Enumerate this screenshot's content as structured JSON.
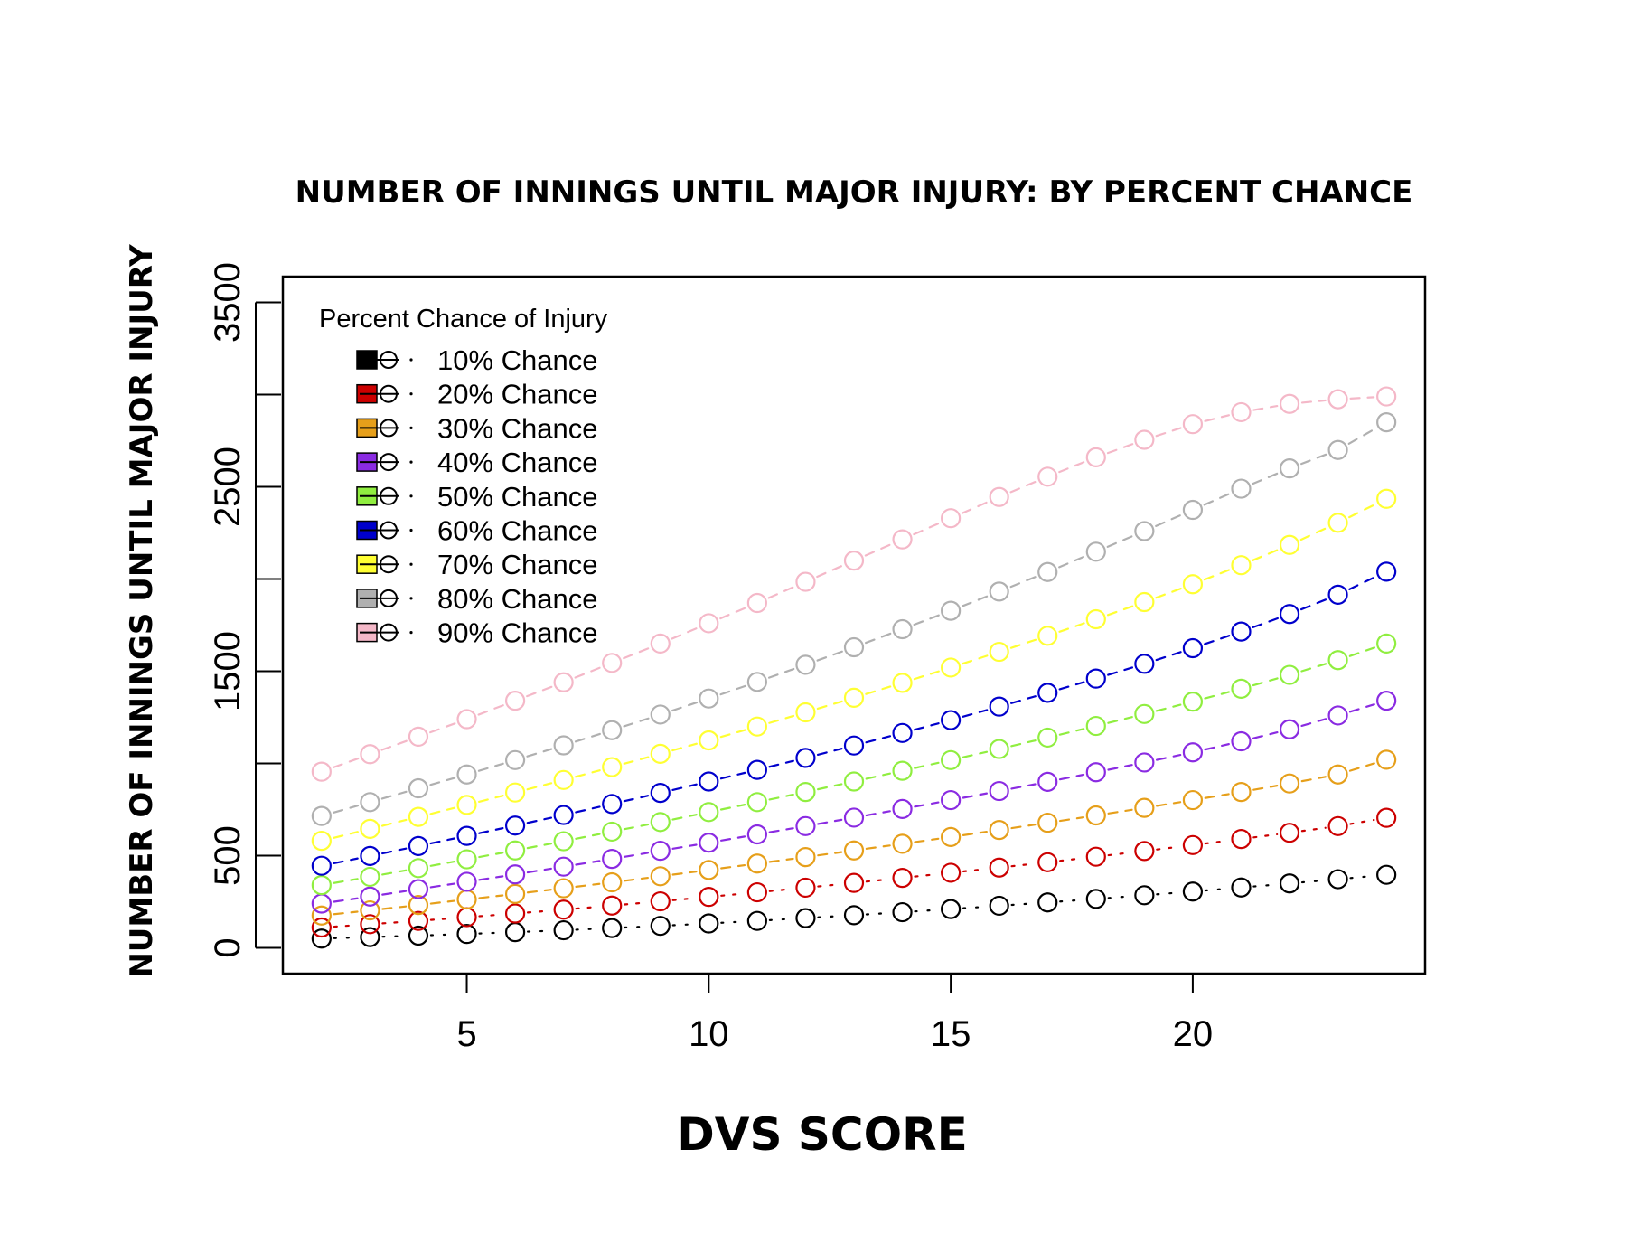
{
  "chart_data": {
    "type": "scatter",
    "title": "NUMBER OF INNINGS UNTIL MAJOR INJURY: BY PERCENT CHANCE",
    "xlabel": "DVS SCORE",
    "ylabel": "NUMBER OF INNINGS UNTIL MAJOR INJURY",
    "xlim": [
      1.2,
      24.8
    ],
    "ylim": [
      -140,
      3640
    ],
    "x_ticks": [
      5,
      10,
      15,
      20
    ],
    "y_ticks": [
      0,
      500,
      1000,
      1500,
      2000,
      2500,
      3000,
      3500
    ],
    "y_tick_labels": [
      "0",
      "500",
      "",
      "1500",
      "",
      "2500",
      "",
      "3500"
    ],
    "grid": false,
    "legend_position": "top-left",
    "legend_title": "Percent Chance of Injury",
    "x": [
      2,
      3,
      4,
      5,
      6,
      7,
      8,
      9,
      10,
      11,
      12,
      13,
      14,
      15,
      16,
      17,
      18,
      19,
      20,
      21,
      22,
      23,
      24
    ],
    "series": [
      {
        "name": "10% Chance",
        "color": "#000000",
        "values": [
          50,
          58,
          66,
          75,
          85,
          95,
          107,
          119,
          132,
          146,
          161,
          177,
          193,
          210,
          228,
          246,
          265,
          285,
          305,
          327,
          349,
          372,
          396
        ]
      },
      {
        "name": "20% Chance",
        "color": "#cc0000",
        "values": [
          110,
          128,
          146,
          166,
          186,
          207,
          229,
          252,
          276,
          301,
          326,
          352,
          379,
          407,
          435,
          464,
          494,
          525,
          557,
          590,
          624,
          660,
          705
        ]
      },
      {
        "name": "30% Chance",
        "color": "#e69f1a",
        "values": [
          175,
          203,
          232,
          262,
          292,
          323,
          355,
          388,
          422,
          457,
          492,
          528,
          564,
          601,
          639,
          678,
          718,
          759,
          801,
          845,
          891,
          940,
          1020
        ]
      },
      {
        "name": "40% Chance",
        "color": "#8a2be2",
        "values": [
          240,
          278,
          318,
          358,
          398,
          440,
          482,
          526,
          570,
          615,
          660,
          706,
          753,
          801,
          850,
          900,
          952,
          1005,
          1060,
          1120,
          1185,
          1260,
          1340
        ]
      },
      {
        "name": "50% Chance",
        "color": "#90ee40",
        "values": [
          340,
          385,
          432,
          480,
          528,
          578,
          630,
          682,
          736,
          790,
          845,
          902,
          960,
          1018,
          1078,
          1140,
          1203,
          1268,
          1335,
          1405,
          1480,
          1560,
          1650
        ]
      },
      {
        "name": "60% Chance",
        "color": "#0000cc",
        "values": [
          445,
          498,
          552,
          607,
          663,
          720,
          780,
          840,
          902,
          965,
          1030,
          1097,
          1165,
          1235,
          1308,
          1383,
          1460,
          1540,
          1625,
          1715,
          1810,
          1915,
          2040
        ]
      },
      {
        "name": "70% Chance",
        "color": "#ffff33",
        "values": [
          580,
          645,
          710,
          775,
          842,
          910,
          980,
          1052,
          1125,
          1200,
          1277,
          1356,
          1437,
          1520,
          1605,
          1692,
          1782,
          1875,
          1972,
          2075,
          2185,
          2305,
          2435
        ]
      },
      {
        "name": "80% Chance",
        "color": "#b0b0b0",
        "values": [
          715,
          790,
          865,
          940,
          1018,
          1098,
          1180,
          1265,
          1352,
          1442,
          1535,
          1630,
          1728,
          1828,
          1932,
          2038,
          2148,
          2260,
          2375,
          2490,
          2600,
          2700,
          2850
        ]
      },
      {
        "name": "90% Chance",
        "color": "#f4b8c8",
        "values": [
          955,
          1050,
          1145,
          1240,
          1340,
          1440,
          1545,
          1650,
          1760,
          1870,
          1985,
          2100,
          2215,
          2330,
          2445,
          2555,
          2660,
          2755,
          2840,
          2905,
          2950,
          2975,
          2990
        ]
      }
    ]
  }
}
